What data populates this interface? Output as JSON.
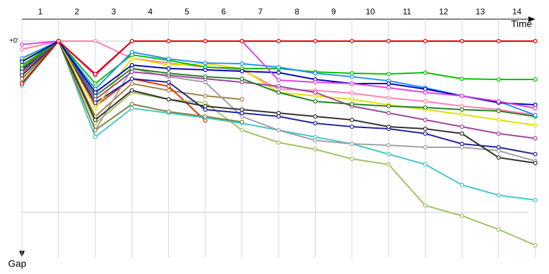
{
  "chart_data": {
    "type": "line",
    "x_label": "Time",
    "y_label": "Gap",
    "x": [
      0,
      1,
      2,
      3,
      4,
      5,
      6,
      7,
      8,
      9,
      10,
      11,
      12,
      13,
      14
    ],
    "xlim": [
      0,
      14
    ],
    "xticks": [
      {
        "value": 0.5,
        "label": "1"
      },
      {
        "value": 1.5,
        "label": "2"
      },
      {
        "value": 2.5,
        "label": "3"
      },
      {
        "value": 3.5,
        "label": "4"
      },
      {
        "value": 4.5,
        "label": "5"
      },
      {
        "value": 5.5,
        "label": "6"
      },
      {
        "value": 6.5,
        "label": "7"
      },
      {
        "value": 7.5,
        "label": "8"
      },
      {
        "value": 8.5,
        "label": "9"
      },
      {
        "value": 9.5,
        "label": "10"
      },
      {
        "value": 10.5,
        "label": "11"
      },
      {
        "value": 11.5,
        "label": "12"
      },
      {
        "value": 12.5,
        "label": "13"
      },
      {
        "value": 13.5,
        "label": "14"
      }
    ],
    "ylim": [
      0,
      316
    ],
    "yticks": [
      {
        "value": 0,
        "label": "+0'"
      }
    ],
    "minor_grid": [
      250
    ],
    "xgrid": true,
    "series": [
      {
        "color": "#e00000",
        "values": [
          62,
          0,
          48,
          0,
          0,
          0,
          0,
          0,
          0,
          0,
          0,
          0,
          0,
          0,
          0
        ]
      },
      {
        "color": "#e040e0",
        "values": [
          5,
          0,
          50,
          0,
          0,
          0,
          0,
          57,
          60,
          62,
          68,
          75,
          80,
          88,
          98
        ]
      },
      {
        "color": "#0000c0",
        "values": [
          30,
          0,
          75,
          35,
          40,
          42,
          44,
          46,
          56,
          62,
          62,
          70,
          80,
          90,
          93
        ]
      },
      {
        "color": "#2090ff",
        "values": [
          25,
          0,
          70,
          16,
          26,
          32,
          33,
          38,
          47,
          52,
          58,
          68,
          80,
          88,
          108
        ]
      },
      {
        "color": "#00c000",
        "values": [
          35,
          0,
          62,
          20,
          28,
          38,
          40,
          40,
          45,
          47,
          48,
          46,
          55,
          56,
          56
        ]
      },
      {
        "color": "#208020",
        "values": [
          40,
          0,
          80,
          40,
          47,
          52,
          55,
          75,
          88,
          92,
          95,
          97,
          100,
          102,
          110
        ]
      },
      {
        "color": "#a040a0",
        "values": [
          45,
          0,
          85,
          45,
          50,
          55,
          60,
          66,
          75,
          95,
          105,
          115,
          125,
          135,
          142
        ]
      },
      {
        "color": "#e0e000",
        "values": [
          28,
          0,
          98,
          25,
          35,
          33,
          40,
          75,
          80,
          85,
          93,
          100,
          107,
          115,
          123
        ]
      },
      {
        "color": "#ff80b0",
        "values": [
          12,
          0,
          0,
          25,
          32,
          38,
          42,
          70,
          72,
          76,
          83,
          88,
          95,
          100,
          108
        ]
      },
      {
        "color": "#303030",
        "values": [
          50,
          0,
          115,
          72,
          85,
          95,
          100,
          105,
          110,
          115,
          125,
          128,
          135,
          170,
          178
        ]
      },
      {
        "color": "#2020a0",
        "values": [
          42,
          0,
          90,
          55,
          60,
          100,
          105,
          110,
          120,
          125,
          128,
          135,
          150,
          155,
          165
        ]
      },
      {
        "color": "#808040",
        "values": [
          55,
          0,
          130,
          92,
          103,
          110,
          118,
          null,
          null,
          null,
          null,
          null,
          null,
          null,
          null
        ]
      },
      {
        "color": "#a0a0a0",
        "values": [
          48,
          0,
          130,
          40,
          52,
          60,
          110,
          130,
          145,
          150,
          152,
          155,
          155,
          160,
          175
        ]
      },
      {
        "color": "#40c8c8",
        "values": [
          65,
          0,
          140,
          98,
          105,
          112,
          120,
          130,
          140,
          150,
          165,
          180,
          210,
          225,
          232
        ]
      },
      {
        "color": "#a0c060",
        "values": [
          60,
          0,
          120,
          75,
          85,
          90,
          130,
          148,
          158,
          172,
          180,
          240,
          255,
          275,
          298
        ]
      },
      {
        "color": "#e03000",
        "values": [
          45,
          0,
          95,
          55,
          66,
          116,
          null,
          null,
          null,
          null,
          null,
          null,
          null,
          null,
          null
        ]
      },
      {
        "color": "#a08040",
        "values": [
          38,
          0,
          110,
          62,
          72,
          80,
          85,
          null,
          null,
          null,
          null,
          null,
          null,
          null,
          null
        ]
      }
    ]
  }
}
